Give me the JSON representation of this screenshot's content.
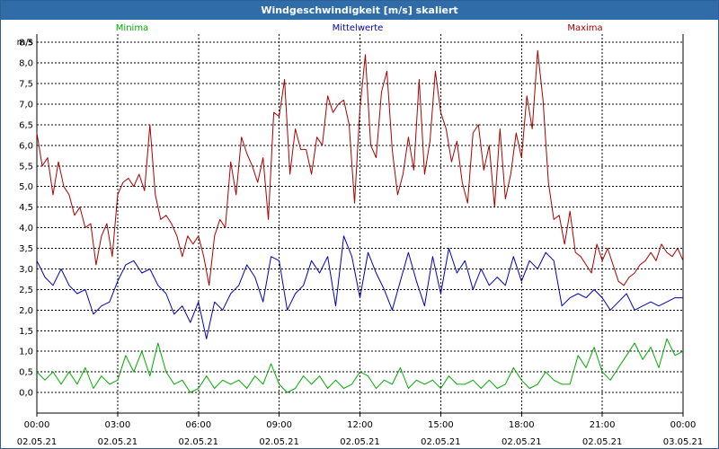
{
  "window": {
    "title": "Windgeschwindigkeit [m/s] skaliert"
  },
  "colors": {
    "minima": "#00aa00",
    "mittelwerte": "#0000bb",
    "maxima": "#aa0000",
    "grid": "#000000"
  },
  "chart_data": {
    "type": "line",
    "title": "Windgeschwindigkeit [m/s] skaliert",
    "ylabel": "m/s",
    "ylim": [
      -0.5,
      8.7
    ],
    "yticks": [
      "0,0",
      "0,5",
      "1,0",
      "1,5",
      "2,0",
      "2,5",
      "3,0",
      "3,5",
      "4,0",
      "4,5",
      "5,0",
      "5,5",
      "6,0",
      "6,5",
      "7,0",
      "7,5",
      "8,0",
      "8,5"
    ],
    "xlim": [
      0,
      24
    ],
    "xticks": [
      {
        "time": "00:00",
        "date": "02.05.21"
      },
      {
        "time": "03:00",
        "date": "02.05.21"
      },
      {
        "time": "06:00",
        "date": "02.05.21"
      },
      {
        "time": "09:00",
        "date": "02.05.21"
      },
      {
        "time": "12:00",
        "date": "02.05.21"
      },
      {
        "time": "15:00",
        "date": "02.05.21"
      },
      {
        "time": "18:00",
        "date": "02.05.21"
      },
      {
        "time": "21:00",
        "date": "02.05.21"
      },
      {
        "time": "00:00",
        "date": "03.05.21"
      }
    ],
    "grid": "dashed, at every 0.5 m/s and every 3 hours",
    "legend_placement": "top",
    "series": [
      {
        "name": "Minima",
        "points": [
          [
            0,
            0.5
          ],
          [
            0.3,
            0.3
          ],
          [
            0.6,
            0.5
          ],
          [
            0.9,
            0.2
          ],
          [
            1.2,
            0.5
          ],
          [
            1.5,
            0.2
          ],
          [
            1.8,
            0.6
          ],
          [
            2.1,
            0.1
          ],
          [
            2.4,
            0.4
          ],
          [
            2.7,
            0.2
          ],
          [
            3.0,
            0.3
          ],
          [
            3.3,
            0.9
          ],
          [
            3.6,
            0.5
          ],
          [
            3.9,
            1.0
          ],
          [
            4.2,
            0.4
          ],
          [
            4.5,
            1.2
          ],
          [
            4.8,
            0.5
          ],
          [
            5.1,
            0.2
          ],
          [
            5.4,
            0.3
          ],
          [
            5.7,
            0.0
          ],
          [
            6.0,
            0.1
          ],
          [
            6.3,
            0.4
          ],
          [
            6.6,
            0.1
          ],
          [
            6.9,
            0.3
          ],
          [
            7.2,
            0.2
          ],
          [
            7.5,
            0.3
          ],
          [
            7.8,
            0.1
          ],
          [
            8.1,
            0.4
          ],
          [
            8.4,
            0.2
          ],
          [
            8.7,
            0.7
          ],
          [
            9.0,
            0.2
          ],
          [
            9.3,
            0.0
          ],
          [
            9.6,
            0.1
          ],
          [
            9.9,
            0.4
          ],
          [
            10.2,
            0.2
          ],
          [
            10.5,
            0.4
          ],
          [
            10.8,
            0.1
          ],
          [
            11.1,
            0.3
          ],
          [
            11.4,
            0.1
          ],
          [
            11.7,
            0.2
          ],
          [
            12.0,
            0.5
          ],
          [
            12.3,
            0.4
          ],
          [
            12.6,
            0.1
          ],
          [
            12.9,
            0.3
          ],
          [
            13.2,
            0.2
          ],
          [
            13.5,
            0.6
          ],
          [
            13.8,
            0.1
          ],
          [
            14.1,
            0.3
          ],
          [
            14.4,
            0.2
          ],
          [
            14.7,
            0.3
          ],
          [
            15.0,
            0.1
          ],
          [
            15.3,
            0.4
          ],
          [
            15.6,
            0.2
          ],
          [
            15.9,
            0.2
          ],
          [
            16.2,
            0.3
          ],
          [
            16.5,
            0.1
          ],
          [
            16.8,
            0.3
          ],
          [
            17.1,
            0.1
          ],
          [
            17.4,
            0.2
          ],
          [
            17.7,
            0.6
          ],
          [
            18.0,
            0.3
          ],
          [
            18.3,
            0.1
          ],
          [
            18.6,
            0.2
          ],
          [
            18.9,
            0.5
          ],
          [
            19.2,
            0.3
          ],
          [
            19.5,
            0.2
          ],
          [
            19.8,
            0.2
          ],
          [
            20.1,
            0.9
          ],
          [
            20.4,
            0.6
          ],
          [
            20.7,
            1.1
          ],
          [
            21.0,
            0.5
          ],
          [
            21.3,
            0.3
          ],
          [
            21.6,
            0.6
          ],
          [
            21.9,
            0.9
          ],
          [
            22.2,
            1.2
          ],
          [
            22.5,
            0.8
          ],
          [
            22.8,
            1.1
          ],
          [
            23.1,
            0.6
          ],
          [
            23.4,
            1.3
          ],
          [
            23.7,
            0.9
          ],
          [
            24.0,
            1.0
          ]
        ]
      },
      {
        "name": "Mittelwerte",
        "points": [
          [
            0,
            3.2
          ],
          [
            0.3,
            2.8
          ],
          [
            0.6,
            2.6
          ],
          [
            0.9,
            3.0
          ],
          [
            1.2,
            2.6
          ],
          [
            1.5,
            2.4
          ],
          [
            1.8,
            2.5
          ],
          [
            2.1,
            1.9
          ],
          [
            2.4,
            2.1
          ],
          [
            2.7,
            2.2
          ],
          [
            3.0,
            2.7
          ],
          [
            3.3,
            3.1
          ],
          [
            3.6,
            3.2
          ],
          [
            3.9,
            2.9
          ],
          [
            4.2,
            3.0
          ],
          [
            4.5,
            2.6
          ],
          [
            4.8,
            2.4
          ],
          [
            5.1,
            1.9
          ],
          [
            5.4,
            2.1
          ],
          [
            5.7,
            1.7
          ],
          [
            6.0,
            2.2
          ],
          [
            6.3,
            1.3
          ],
          [
            6.6,
            2.2
          ],
          [
            6.9,
            2.0
          ],
          [
            7.2,
            2.4
          ],
          [
            7.5,
            2.6
          ],
          [
            7.8,
            3.1
          ],
          [
            8.1,
            2.8
          ],
          [
            8.4,
            2.2
          ],
          [
            8.7,
            3.3
          ],
          [
            9.0,
            3.2
          ],
          [
            9.3,
            2.0
          ],
          [
            9.6,
            2.4
          ],
          [
            9.9,
            2.6
          ],
          [
            10.2,
            3.2
          ],
          [
            10.5,
            2.9
          ],
          [
            10.8,
            3.3
          ],
          [
            11.1,
            2.1
          ],
          [
            11.4,
            3.8
          ],
          [
            11.7,
            3.3
          ],
          [
            12.0,
            2.3
          ],
          [
            12.3,
            3.4
          ],
          [
            12.6,
            2.9
          ],
          [
            12.9,
            2.5
          ],
          [
            13.2,
            2.0
          ],
          [
            13.5,
            2.7
          ],
          [
            13.8,
            3.4
          ],
          [
            14.1,
            2.7
          ],
          [
            14.4,
            2.1
          ],
          [
            14.7,
            3.3
          ],
          [
            15.0,
            2.4
          ],
          [
            15.3,
            3.5
          ],
          [
            15.6,
            2.9
          ],
          [
            15.9,
            3.2
          ],
          [
            16.2,
            2.5
          ],
          [
            16.5,
            3.0
          ],
          [
            16.8,
            2.6
          ],
          [
            17.1,
            2.8
          ],
          [
            17.4,
            2.6
          ],
          [
            17.7,
            3.3
          ],
          [
            18.0,
            2.7
          ],
          [
            18.3,
            3.2
          ],
          [
            18.6,
            3.0
          ],
          [
            18.9,
            3.4
          ],
          [
            19.2,
            3.2
          ],
          [
            19.5,
            2.1
          ],
          [
            19.8,
            2.3
          ],
          [
            20.1,
            2.4
          ],
          [
            20.4,
            2.3
          ],
          [
            20.7,
            2.5
          ],
          [
            21.0,
            2.3
          ],
          [
            21.3,
            2.0
          ],
          [
            21.6,
            2.2
          ],
          [
            21.9,
            2.4
          ],
          [
            22.2,
            2.0
          ],
          [
            22.5,
            2.1
          ],
          [
            22.8,
            2.2
          ],
          [
            23.1,
            2.1
          ],
          [
            23.4,
            2.2
          ],
          [
            23.7,
            2.3
          ],
          [
            24.0,
            2.3
          ]
        ]
      },
      {
        "name": "Maxima",
        "points": [
          [
            0,
            6.3
          ],
          [
            0.2,
            5.5
          ],
          [
            0.4,
            5.7
          ],
          [
            0.6,
            4.8
          ],
          [
            0.8,
            5.6
          ],
          [
            1.0,
            5.0
          ],
          [
            1.2,
            4.8
          ],
          [
            1.4,
            4.3
          ],
          [
            1.6,
            4.5
          ],
          [
            1.8,
            4.0
          ],
          [
            2.0,
            4.1
          ],
          [
            2.2,
            3.1
          ],
          [
            2.4,
            3.8
          ],
          [
            2.6,
            4.1
          ],
          [
            2.8,
            3.3
          ],
          [
            3.0,
            4.8
          ],
          [
            3.2,
            5.1
          ],
          [
            3.4,
            5.2
          ],
          [
            3.6,
            5.0
          ],
          [
            3.8,
            5.3
          ],
          [
            4.0,
            4.9
          ],
          [
            4.2,
            6.5
          ],
          [
            4.4,
            4.8
          ],
          [
            4.6,
            4.2
          ],
          [
            4.8,
            4.3
          ],
          [
            5.0,
            4.1
          ],
          [
            5.2,
            3.8
          ],
          [
            5.4,
            3.3
          ],
          [
            5.6,
            3.8
          ],
          [
            5.8,
            3.6
          ],
          [
            6.0,
            3.8
          ],
          [
            6.2,
            3.3
          ],
          [
            6.4,
            2.6
          ],
          [
            6.6,
            3.8
          ],
          [
            6.8,
            4.2
          ],
          [
            7.0,
            4.0
          ],
          [
            7.2,
            5.6
          ],
          [
            7.4,
            4.8
          ],
          [
            7.6,
            6.2
          ],
          [
            7.8,
            5.8
          ],
          [
            8.0,
            5.5
          ],
          [
            8.2,
            5.1
          ],
          [
            8.4,
            5.7
          ],
          [
            8.6,
            4.2
          ],
          [
            8.8,
            6.8
          ],
          [
            9.0,
            6.7
          ],
          [
            9.2,
            7.6
          ],
          [
            9.4,
            5.3
          ],
          [
            9.6,
            6.4
          ],
          [
            9.8,
            5.9
          ],
          [
            10.0,
            5.9
          ],
          [
            10.2,
            5.3
          ],
          [
            10.4,
            6.2
          ],
          [
            10.6,
            6.0
          ],
          [
            10.8,
            7.2
          ],
          [
            11.0,
            6.8
          ],
          [
            11.2,
            7.0
          ],
          [
            11.4,
            7.1
          ],
          [
            11.6,
            6.5
          ],
          [
            11.8,
            4.6
          ],
          [
            12.0,
            6.9
          ],
          [
            12.2,
            8.2
          ],
          [
            12.4,
            6.0
          ],
          [
            12.6,
            5.7
          ],
          [
            12.8,
            7.3
          ],
          [
            13.0,
            7.8
          ],
          [
            13.2,
            5.9
          ],
          [
            13.4,
            4.8
          ],
          [
            13.6,
            5.3
          ],
          [
            13.8,
            6.2
          ],
          [
            14.0,
            5.4
          ],
          [
            14.2,
            7.6
          ],
          [
            14.4,
            5.3
          ],
          [
            14.6,
            6.1
          ],
          [
            14.8,
            7.8
          ],
          [
            15.0,
            6.8
          ],
          [
            15.2,
            6.4
          ],
          [
            15.4,
            5.6
          ],
          [
            15.6,
            6.1
          ],
          [
            15.8,
            5.1
          ],
          [
            16.0,
            4.6
          ],
          [
            16.2,
            6.3
          ],
          [
            16.4,
            6.5
          ],
          [
            16.6,
            5.4
          ],
          [
            16.8,
            6.0
          ],
          [
            17.0,
            4.5
          ],
          [
            17.2,
            6.4
          ],
          [
            17.4,
            4.7
          ],
          [
            17.6,
            5.3
          ],
          [
            17.8,
            6.3
          ],
          [
            18.0,
            5.7
          ],
          [
            18.2,
            7.2
          ],
          [
            18.4,
            6.4
          ],
          [
            18.6,
            8.3
          ],
          [
            18.8,
            7.1
          ],
          [
            19.0,
            5.1
          ],
          [
            19.2,
            4.2
          ],
          [
            19.4,
            4.3
          ],
          [
            19.6,
            3.6
          ],
          [
            19.8,
            4.4
          ],
          [
            20.0,
            3.4
          ],
          [
            20.2,
            3.3
          ],
          [
            20.4,
            3.1
          ],
          [
            20.6,
            2.9
          ],
          [
            20.8,
            3.6
          ],
          [
            21.0,
            3.2
          ],
          [
            21.2,
            3.5
          ],
          [
            21.4,
            3.1
          ],
          [
            21.6,
            2.7
          ],
          [
            21.8,
            2.6
          ],
          [
            22.0,
            2.8
          ],
          [
            22.2,
            2.9
          ],
          [
            22.4,
            3.1
          ],
          [
            22.6,
            3.2
          ],
          [
            22.8,
            3.4
          ],
          [
            23.0,
            3.2
          ],
          [
            23.2,
            3.6
          ],
          [
            23.4,
            3.4
          ],
          [
            23.6,
            3.3
          ],
          [
            23.8,
            3.5
          ],
          [
            24.0,
            3.2
          ]
        ]
      }
    ]
  }
}
